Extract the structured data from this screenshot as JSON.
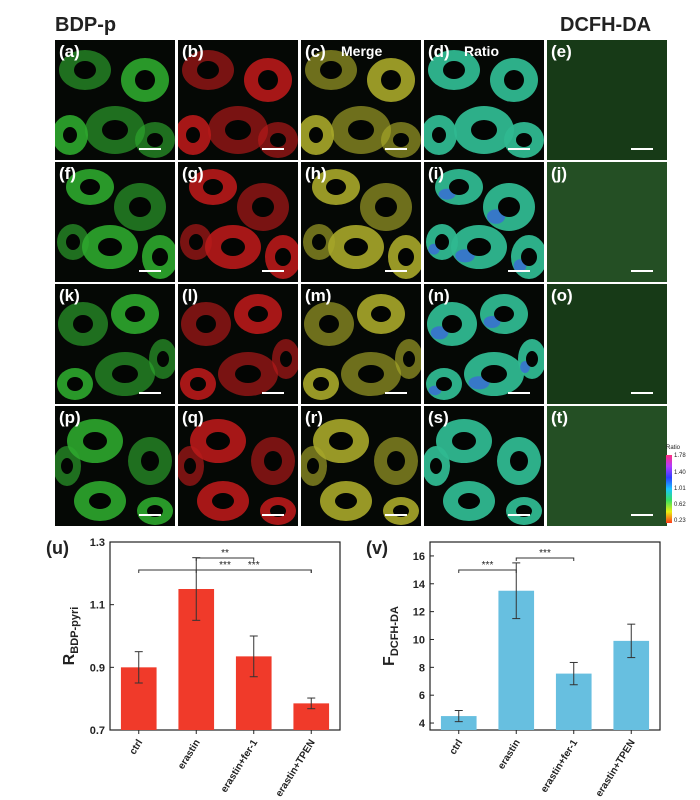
{
  "headers": {
    "left": "BDP-p",
    "right": "DCFH-DA"
  },
  "panels": [
    {
      "label": "(a)",
      "title": "",
      "channel": "green"
    },
    {
      "label": "(b)",
      "title": "",
      "channel": "red"
    },
    {
      "label": "(c)",
      "title": "Merge",
      "channel": "yellow"
    },
    {
      "label": "(d)",
      "title": "Ratio",
      "channel": "ratio"
    },
    {
      "label": "(e)",
      "title": "",
      "channel": "dcfh"
    },
    {
      "label": "(f)",
      "title": "",
      "channel": "green"
    },
    {
      "label": "(g)",
      "title": "",
      "channel": "red"
    },
    {
      "label": "(h)",
      "title": "",
      "channel": "yellow"
    },
    {
      "label": "(i)",
      "title": "",
      "channel": "ratio"
    },
    {
      "label": "(j)",
      "title": "",
      "channel": "dcfh"
    },
    {
      "label": "(k)",
      "title": "",
      "channel": "green"
    },
    {
      "label": "(l)",
      "title": "",
      "channel": "red"
    },
    {
      "label": "(m)",
      "title": "",
      "channel": "yellow"
    },
    {
      "label": "(n)",
      "title": "",
      "channel": "ratio"
    },
    {
      "label": "(o)",
      "title": "",
      "channel": "dcfh"
    },
    {
      "label": "(p)",
      "title": "",
      "channel": "green"
    },
    {
      "label": "(q)",
      "title": "",
      "channel": "red"
    },
    {
      "label": "(r)",
      "title": "",
      "channel": "yellow"
    },
    {
      "label": "(s)",
      "title": "",
      "channel": "ratio"
    },
    {
      "label": "(t)",
      "title": "",
      "channel": "dcfh"
    }
  ],
  "colorbar": {
    "title": "Ratio",
    "ticks": [
      "1.78",
      "1.40",
      "1.01",
      "0.62",
      "0.23"
    ]
  },
  "colors": {
    "green": "#2ea82e",
    "red": "#b81a1a",
    "yellow": "#a8a82a",
    "dcfh": "#1f4a1f",
    "bar_u": "#f03a2a",
    "bar_v": "#67bfe0"
  },
  "chart_data": [
    {
      "type": "bar",
      "panel_label": "(u)",
      "title": "",
      "xlabel": "",
      "ylabel": "R",
      "ylabel_sub": "BDP-pyri",
      "categories": [
        "ctrl",
        "erastin",
        "erastin+fer-1",
        "erastin+TPEN"
      ],
      "values": [
        0.9,
        1.15,
        0.935,
        0.785
      ],
      "errors": [
        0.05,
        0.1,
        0.065,
        0.017
      ],
      "ylim": [
        0.7,
        1.3
      ],
      "yticks": [
        "0.7",
        "0.9",
        "1.1",
        "1.3"
      ],
      "significance": [
        {
          "from": 0,
          "to": 3,
          "label": "***"
        },
        {
          "from": 1,
          "to": 2,
          "label": "**"
        },
        {
          "from": 1,
          "to": 3,
          "label": "***"
        }
      ],
      "grid": false
    },
    {
      "type": "bar",
      "panel_label": "(v)",
      "title": "",
      "xlabel": "",
      "ylabel": "F",
      "ylabel_sub": "DCFH-DA",
      "categories": [
        "ctrl",
        "erastin",
        "erastin+fer-1",
        "erastin+TPEN"
      ],
      "values": [
        4.5,
        13.5,
        7.55,
        9.9
      ],
      "errors": [
        0.4,
        2.0,
        0.8,
        1.2
      ],
      "ylim": [
        3.5,
        17
      ],
      "yticks": [
        "4",
        "6",
        "8",
        "10",
        "12",
        "14",
        "16"
      ],
      "significance": [
        {
          "from": 0,
          "to": 1,
          "label": "***"
        },
        {
          "from": 1,
          "to": 2,
          "label": "***"
        }
      ],
      "grid": false
    }
  ]
}
